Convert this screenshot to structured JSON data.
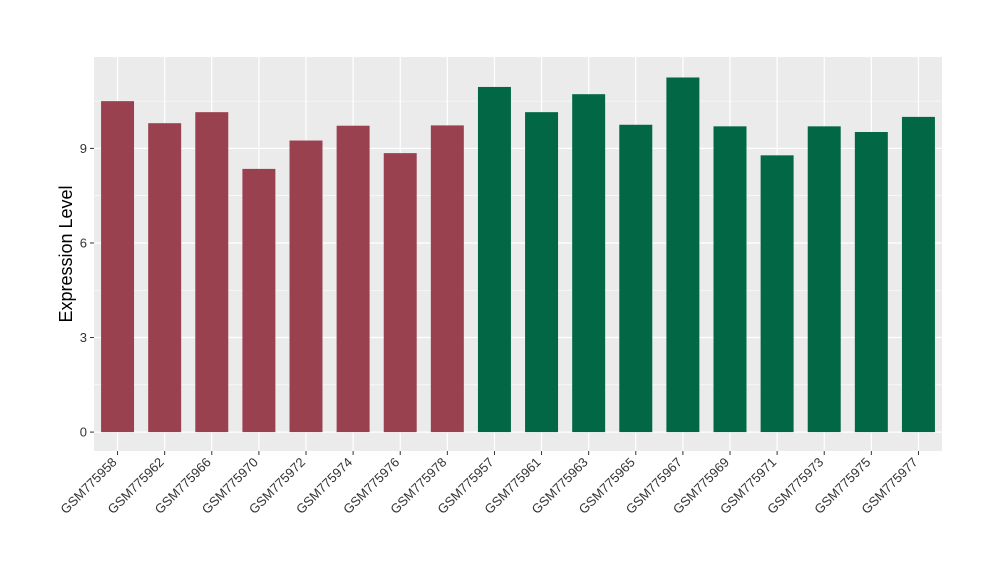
{
  "chart_data": {
    "type": "bar",
    "ylabel": "Expression Level",
    "ylim": [
      -0.6,
      11.9
    ],
    "yticks": [
      0,
      3,
      6,
      9
    ],
    "grid": true,
    "categories": [
      "GSM775958",
      "GSM775962",
      "GSM775966",
      "GSM775970",
      "GSM775972",
      "GSM775974",
      "GSM775976",
      "GSM775978",
      "GSM775957",
      "GSM775961",
      "GSM775963",
      "GSM775965",
      "GSM775967",
      "GSM775969",
      "GSM775971",
      "GSM775973",
      "GSM775975",
      "GSM775977"
    ],
    "values": [
      10.5,
      9.8,
      10.15,
      8.35,
      9.25,
      9.72,
      8.85,
      9.73,
      10.95,
      10.15,
      10.72,
      9.75,
      11.25,
      9.7,
      8.78,
      9.7,
      9.52,
      10.0
    ],
    "colors": [
      "#9a414f",
      "#9a414f",
      "#9a414f",
      "#9a414f",
      "#9a414f",
      "#9a414f",
      "#9a414f",
      "#9a414f",
      "#016744",
      "#016744",
      "#016744",
      "#016744",
      "#016744",
      "#016744",
      "#016744",
      "#016744",
      "#016744",
      "#016744"
    ],
    "panel_background": "#ebebeb",
    "gridline_color": "#ffffff"
  }
}
